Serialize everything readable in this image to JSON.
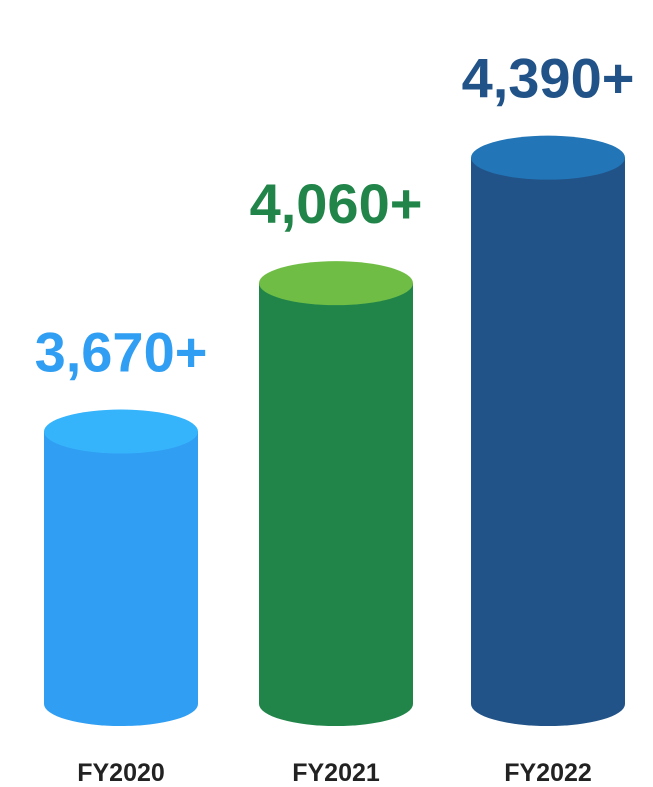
{
  "chart_data": {
    "type": "bar",
    "categories": [
      "FY2020",
      "FY2021",
      "FY2022"
    ],
    "values": [
      3670,
      4060,
      4390
    ],
    "data_labels": [
      "3,670+",
      "4,060+",
      "4,390+"
    ],
    "title": "",
    "xlabel": "",
    "ylabel": "",
    "grid": false,
    "legend": "none",
    "colors": [
      {
        "side": "#309ef2",
        "top": "#35b3fb",
        "label": "#309ef2"
      },
      {
        "side": "#21854a",
        "top": "#6fbd44",
        "label": "#21854a"
      },
      {
        "side": "#215388",
        "top": "#2275b6",
        "label": "#215388"
      }
    ]
  }
}
